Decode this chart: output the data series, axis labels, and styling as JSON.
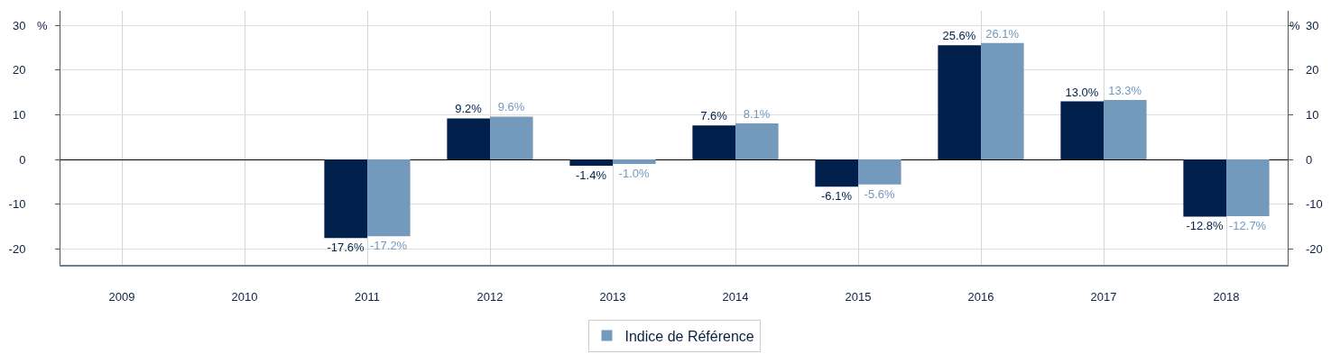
{
  "chart_data": {
    "type": "bar",
    "categories": [
      "2009",
      "2010",
      "2011",
      "2012",
      "2013",
      "2014",
      "2015",
      "2016",
      "2017",
      "2018"
    ],
    "series": [
      {
        "color": "#011f4b",
        "values": [
          null,
          null,
          -17.6,
          9.2,
          -1.4,
          7.6,
          -6.1,
          25.6,
          13.0,
          -12.8
        ],
        "value_labels": [
          null,
          null,
          "-17.6%",
          "9.2%",
          "-1.4%",
          "7.6%",
          "-6.1%",
          "25.6%",
          "13.0%",
          "-12.8%"
        ]
      },
      {
        "name": "Indice de Référence",
        "color": "#7399bd",
        "values": [
          null,
          null,
          -17.2,
          9.6,
          -1.0,
          8.1,
          -5.6,
          26.1,
          13.3,
          -12.7
        ],
        "value_labels": [
          null,
          null,
          "-17.2%",
          "9.6%",
          "-1.0%",
          "8.1%",
          "-5.6%",
          "26.1%",
          "13.3%",
          "-12.7%"
        ]
      }
    ],
    "ylabel": "%",
    "y2label": "%",
    "ylim": [
      -23.6,
      33.3
    ],
    "yticks": [
      -20,
      -10,
      0,
      10,
      20,
      30
    ],
    "y2lim": [
      -23.6,
      33.3
    ],
    "y2ticks": [
      -20,
      -10,
      0,
      10,
      20,
      30
    ],
    "grid": true,
    "legend": "bottom"
  }
}
